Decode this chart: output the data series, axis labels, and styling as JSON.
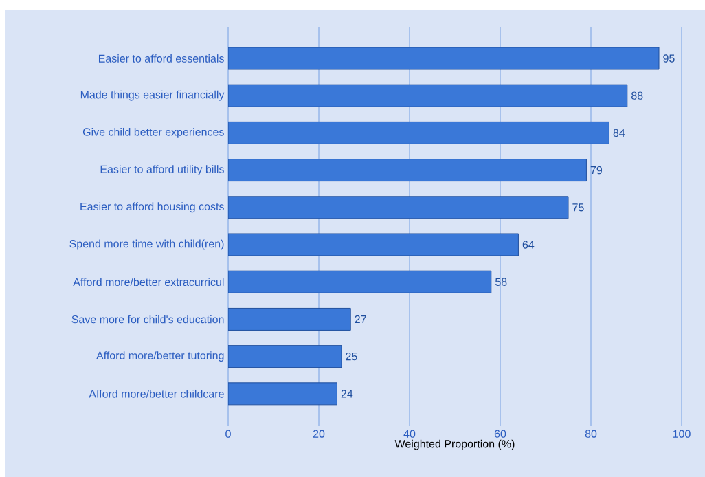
{
  "chart_data": {
    "type": "bar",
    "orientation": "horizontal",
    "xlabel": "Weighted Proportion (%)",
    "categories": [
      "Easier to afford essentials",
      "Made things easier financially",
      "Give child better experiences",
      "Easier to afford utility bills",
      "Easier to afford housing costs",
      "Spend more time with child(ren)",
      "Afford more/better extracurricul",
      "Save more for child's education",
      "Afford more/better tutoring",
      "Afford more/better childcare"
    ],
    "values": [
      95,
      88,
      84,
      79,
      75,
      64,
      58,
      27,
      25,
      24
    ],
    "color": "#3a78d8",
    "xlim": [
      0,
      100
    ],
    "xticks": [
      0,
      20,
      40,
      60,
      80,
      100
    ],
    "grid": "x",
    "data_labels": true
  }
}
